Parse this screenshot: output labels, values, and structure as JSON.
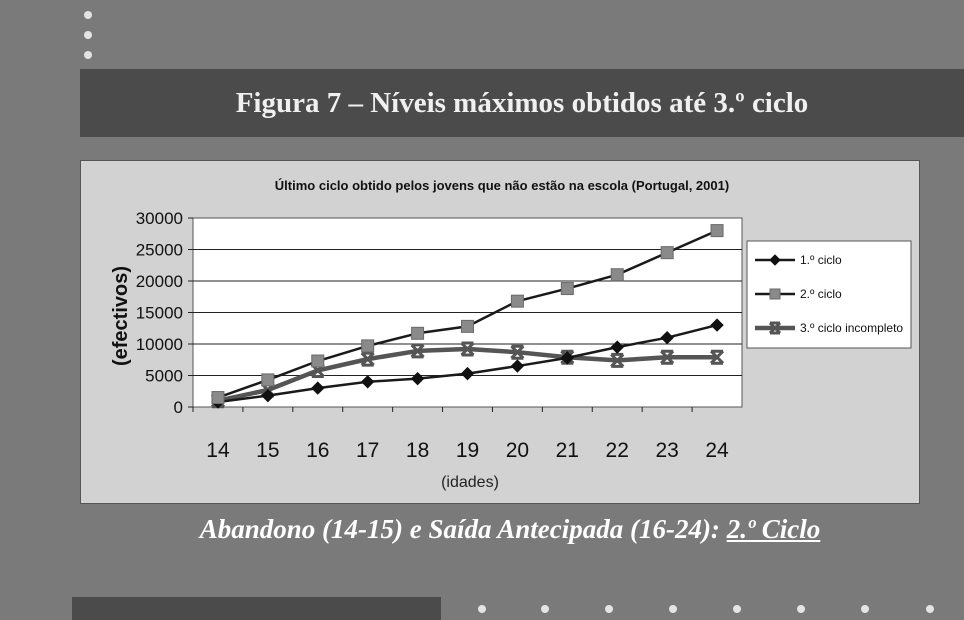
{
  "slide": {
    "title": "Figura 7 – Níveis máximos obtidos até 3.º ciclo",
    "caption_main": "Abandono (14-15) e Saída Antecipada (16-24): ",
    "caption_highlight": "2.º Ciclo"
  },
  "colors": {
    "background": "#7a7a7b",
    "band": "#4b4b4c",
    "plot_area": "#ffffff",
    "chart_bg": "#d2d2d2",
    "series_1": "#1a1a1a",
    "series_2": "#1a1a1a",
    "series_3": "#555555",
    "marker_2": "#8a8a8a"
  },
  "chart_data": {
    "type": "line",
    "title": "Último ciclo obtido pelos jovens que não estão na escola (Portugal, 2001)",
    "xlabel": "(idades)",
    "ylabel": "(efectivos)",
    "x": [
      14,
      15,
      16,
      17,
      18,
      19,
      20,
      21,
      22,
      23,
      24
    ],
    "ylim": [
      0,
      30000
    ],
    "yticks": [
      0,
      5000,
      10000,
      15000,
      20000,
      25000,
      30000
    ],
    "grid": true,
    "legend_position": "right",
    "series": [
      {
        "name": "1.º ciclo",
        "marker": "diamond",
        "values": [
          800,
          1800,
          3000,
          4000,
          4500,
          5300,
          6500,
          7800,
          9500,
          11000,
          13000
        ]
      },
      {
        "name": "2.º ciclo",
        "marker": "square",
        "values": [
          1500,
          4300,
          7300,
          9700,
          11700,
          12800,
          16800,
          18800,
          21000,
          24500,
          28000
        ]
      },
      {
        "name": "3.º ciclo incompleto",
        "marker": "asterisk",
        "values": [
          1000,
          2700,
          5800,
          7600,
          8900,
          9200,
          8700,
          7900,
          7400,
          7900,
          7900
        ]
      }
    ]
  }
}
